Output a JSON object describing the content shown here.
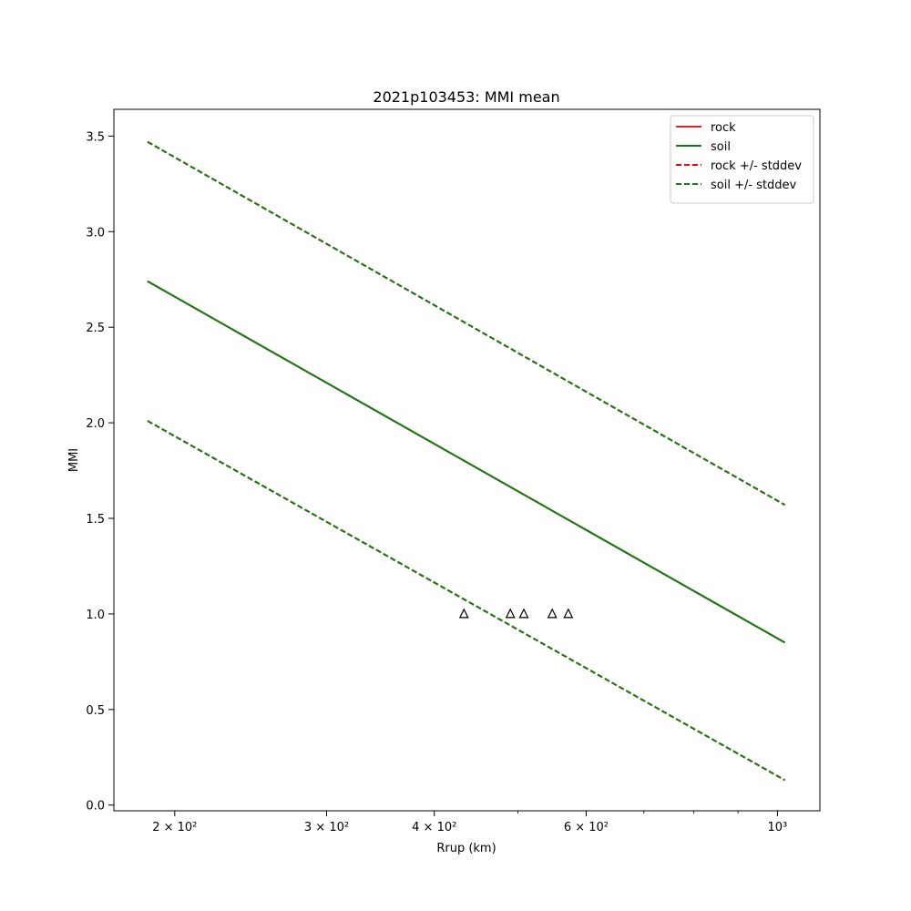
{
  "chart_data": {
    "type": "line",
    "title": "2021p103453: MMI mean",
    "xlabel": "Rrup (km)",
    "ylabel": "MMI",
    "xscale": "log",
    "xlim": [
      170,
      1120
    ],
    "ylim": [
      -0.03,
      3.64
    ],
    "x_ticks": [
      {
        "value": 200,
        "label": "2 × 10²"
      },
      {
        "value": 300,
        "label": "3 × 10²"
      },
      {
        "value": 400,
        "label": "4 × 10²"
      },
      {
        "value": 600,
        "label": "6 × 10²"
      },
      {
        "value": 1000,
        "label": "10³"
      }
    ],
    "x_minor_ticks": [
      500,
      700,
      800,
      900
    ],
    "y_ticks": [
      {
        "value": 0.0,
        "label": "0.0"
      },
      {
        "value": 0.5,
        "label": "0.5"
      },
      {
        "value": 1.0,
        "label": "1.0"
      },
      {
        "value": 1.5,
        "label": "1.5"
      },
      {
        "value": 2.0,
        "label": "2.0"
      },
      {
        "value": 2.5,
        "label": "2.5"
      },
      {
        "value": 3.0,
        "label": "3.0"
      },
      {
        "value": 3.5,
        "label": "3.5"
      }
    ],
    "grid": false,
    "legend_position": "top-right",
    "series": [
      {
        "name": "rock",
        "color": "#d62728",
        "style": "solid",
        "x": [
          186,
          1020
        ],
        "y": [
          2.74,
          0.85
        ]
      },
      {
        "name": "soil",
        "color": "#157c15",
        "style": "solid",
        "x": [
          186,
          1020
        ],
        "y": [
          2.74,
          0.85
        ]
      },
      {
        "name": "rock +/- stddev",
        "color": "#ff0000",
        "style": "dashed",
        "x": [
          186,
          1020
        ],
        "y": [
          3.47,
          1.57
        ],
        "x2": [
          186,
          1020
        ],
        "y2": [
          2.01,
          0.13
        ]
      },
      {
        "name": "soil +/- stddev",
        "color": "#157c15",
        "style": "dashed",
        "x": [
          186,
          1020
        ],
        "y": [
          3.47,
          1.57
        ],
        "x2": [
          186,
          1020
        ],
        "y2": [
          2.01,
          0.13
        ]
      }
    ],
    "observations": {
      "marker": "triangle-open",
      "color": "#000000",
      "x": [
        433,
        490,
        508,
        548,
        572
      ],
      "y": [
        1.0,
        1.0,
        1.0,
        1.0,
        1.0
      ]
    }
  }
}
